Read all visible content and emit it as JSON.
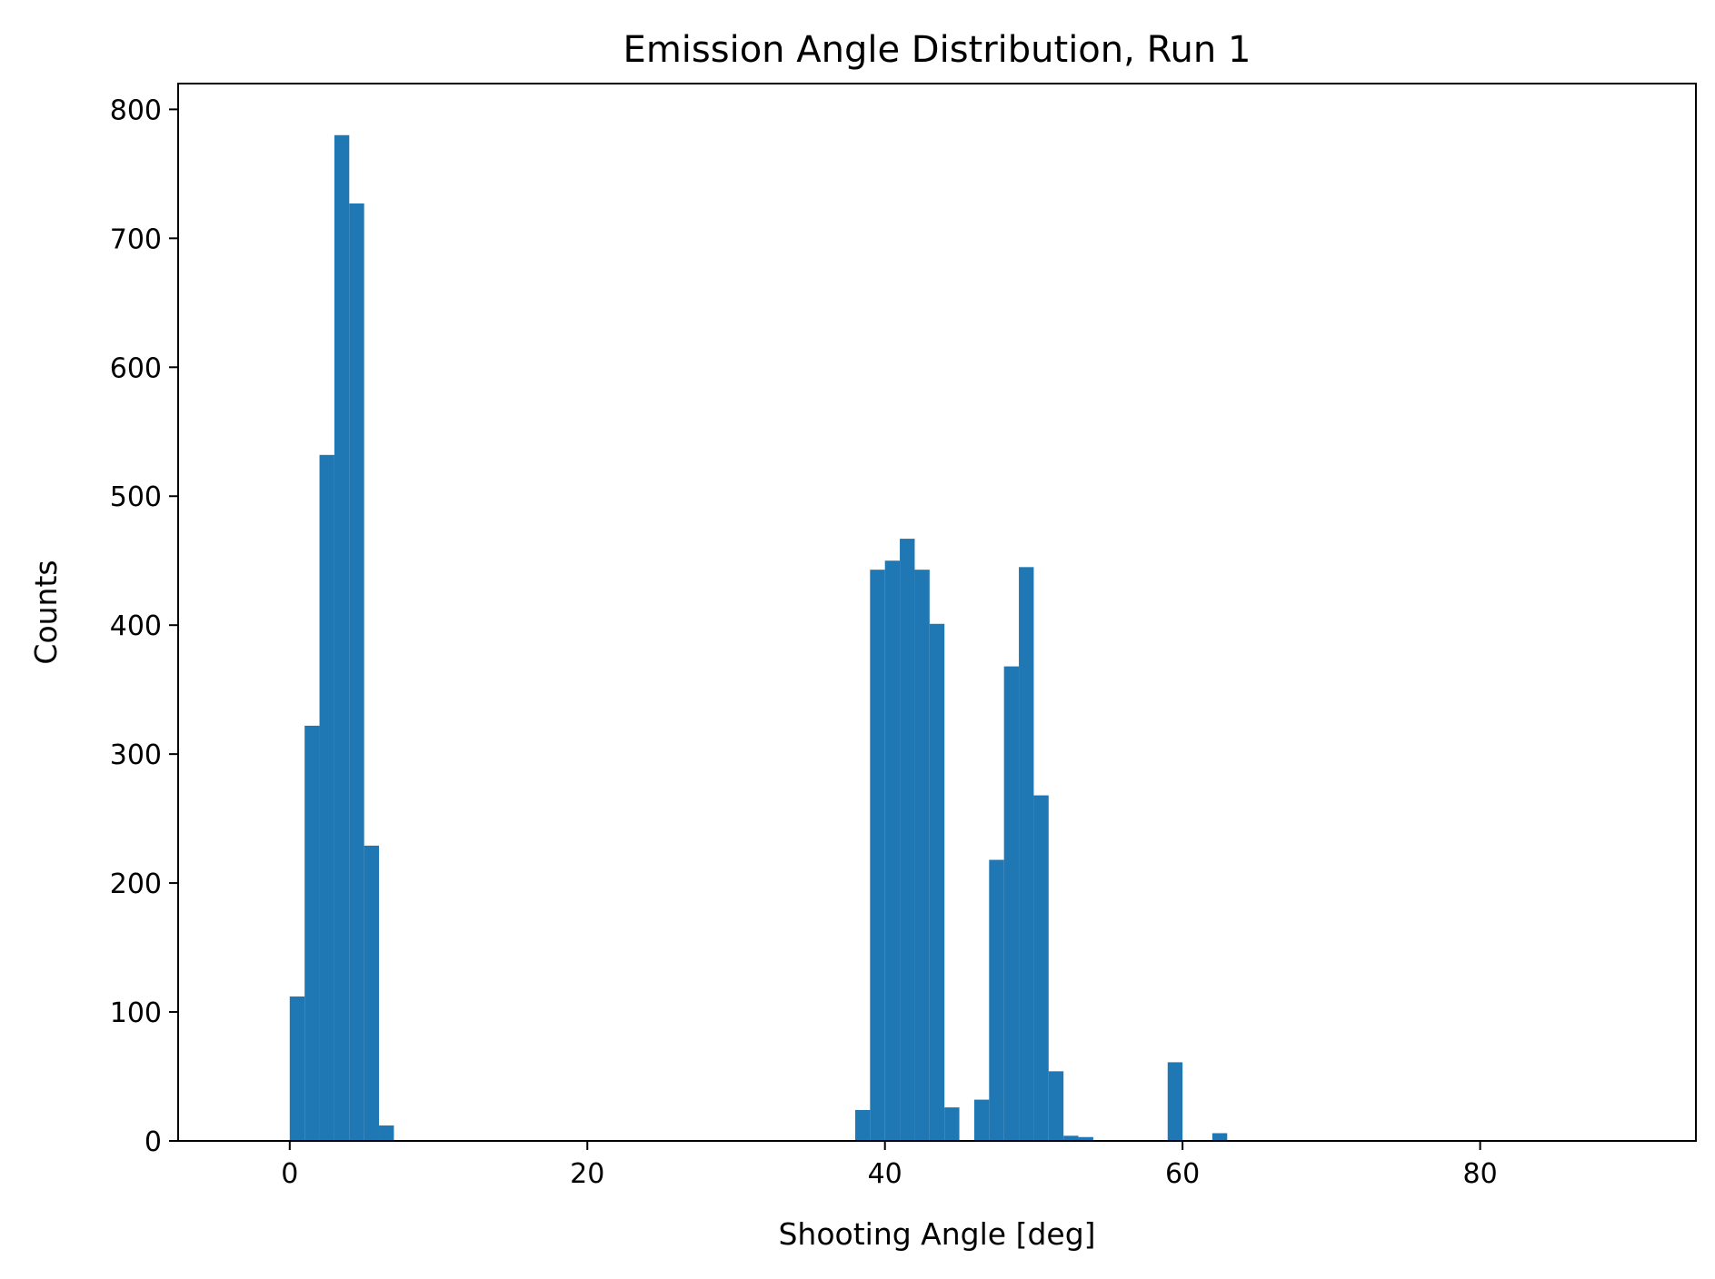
{
  "chart_data": {
    "type": "bar",
    "title": "Emission Angle Distribution, Run 1",
    "xlabel": "Shooting Angle [deg]",
    "ylabel": "Counts",
    "xlim": [
      -7.5,
      94.5
    ],
    "ylim": [
      0,
      820
    ],
    "xticks": [
      0,
      20,
      40,
      60,
      80
    ],
    "yticks": [
      0,
      100,
      200,
      300,
      400,
      500,
      600,
      700,
      800
    ],
    "grid": false,
    "bar_color": "#1f77b4",
    "bin_width": 1,
    "bins": [
      {
        "x": 0,
        "count": 112
      },
      {
        "x": 1,
        "count": 322
      },
      {
        "x": 2,
        "count": 532
      },
      {
        "x": 3,
        "count": 780
      },
      {
        "x": 4,
        "count": 727
      },
      {
        "x": 5,
        "count": 229
      },
      {
        "x": 6,
        "count": 12
      },
      {
        "x": 38,
        "count": 24
      },
      {
        "x": 39,
        "count": 443
      },
      {
        "x": 40,
        "count": 450
      },
      {
        "x": 41,
        "count": 467
      },
      {
        "x": 42,
        "count": 443
      },
      {
        "x": 43,
        "count": 401
      },
      {
        "x": 44,
        "count": 26
      },
      {
        "x": 46,
        "count": 32
      },
      {
        "x": 47,
        "count": 218
      },
      {
        "x": 48,
        "count": 368
      },
      {
        "x": 49,
        "count": 445
      },
      {
        "x": 50,
        "count": 268
      },
      {
        "x": 51,
        "count": 54
      },
      {
        "x": 52,
        "count": 4
      },
      {
        "x": 53,
        "count": 3
      },
      {
        "x": 59,
        "count": 61
      },
      {
        "x": 62,
        "count": 6
      }
    ]
  }
}
